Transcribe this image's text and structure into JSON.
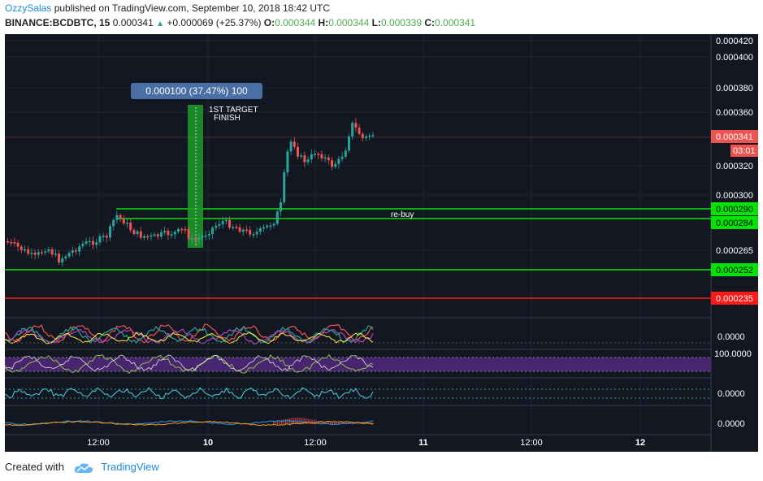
{
  "header": {
    "author": "OzzySalas",
    "published_text": "published on TradingView.com, September 10, 2018 18:42 UTC",
    "symbol": "BINANCE:BCDBTC, 15",
    "last": "0.000341",
    "change": "+0.000069 (+25.37%)",
    "o_label": "O:",
    "o_value": "0.000344",
    "h_label": "H:",
    "h_value": "0.000344",
    "l_label": "L:",
    "l_value": "0.000339",
    "c_label": "C:",
    "c_value": "0.000341"
  },
  "price_axis": [
    "0.000420",
    "0.000400",
    "0.000380",
    "0.000360",
    "0.000320",
    "0.000300",
    "0.000265"
  ],
  "price_badges": {
    "current": "0.000341",
    "countdown": "03:01",
    "line1": "0.000290",
    "line2": "0.000284",
    "line3": "0.000252",
    "line4": "0.000235"
  },
  "indicator_axis": {
    "ind1": "0.0000",
    "ind2": "100.0000",
    "ind3": "0.0000",
    "ind4": "0.0000"
  },
  "time_axis": [
    "12:00",
    "10",
    "12:00",
    "11",
    "12:00",
    "12"
  ],
  "annotations": {
    "measure": "0.000100 (37.47%) 100",
    "target_line1": "1ST TARGET",
    "target_line2": "FINISH",
    "rebuy": "re-buy"
  },
  "colors": {
    "up": "#26a69a",
    "down": "#ef5350",
    "level": "#00e600",
    "stop": "#ff1a1a",
    "measure": "#4a6fa5"
  },
  "footer": {
    "created_with": "Created with",
    "brand": "TradingView"
  }
}
